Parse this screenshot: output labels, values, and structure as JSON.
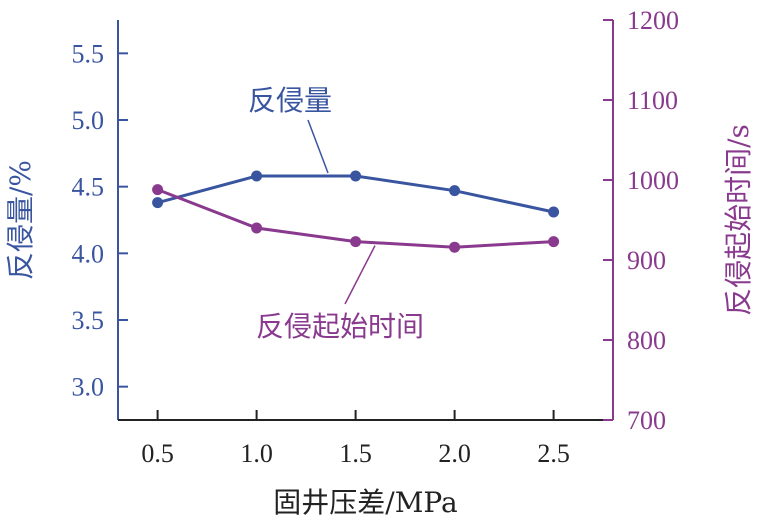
{
  "chart_data": {
    "type": "line",
    "x": [
      0.5,
      1.0,
      1.5,
      2.0,
      2.5
    ],
    "x_tick_labels": [
      "0.5",
      "1.0",
      "1.5",
      "2.0",
      "2.5"
    ],
    "xlabel": "固井压差/MPa",
    "ylabel_left": "反侵量/%",
    "ylabel_right": "反侵起始时间/s",
    "y_left_ticks": [
      "3.0",
      "3.5",
      "4.0",
      "4.5",
      "5.0",
      "5.5"
    ],
    "y_right_ticks": [
      "700",
      "800",
      "900",
      "1000",
      "1100",
      "1200"
    ],
    "ylim_left": [
      2.75,
      5.75
    ],
    "ylim_right": [
      700,
      1200
    ],
    "xlim": [
      0.3,
      2.8
    ],
    "grid": false,
    "series": [
      {
        "name": "反侵量",
        "axis": "left",
        "color": "#3a55a0",
        "values": [
          4.38,
          4.58,
          4.58,
          4.47,
          4.31
        ]
      },
      {
        "name": "反侵起始时间",
        "axis": "right",
        "color": "#8a3a8e",
        "values": [
          988,
          940,
          923,
          916,
          923
        ]
      }
    ]
  }
}
